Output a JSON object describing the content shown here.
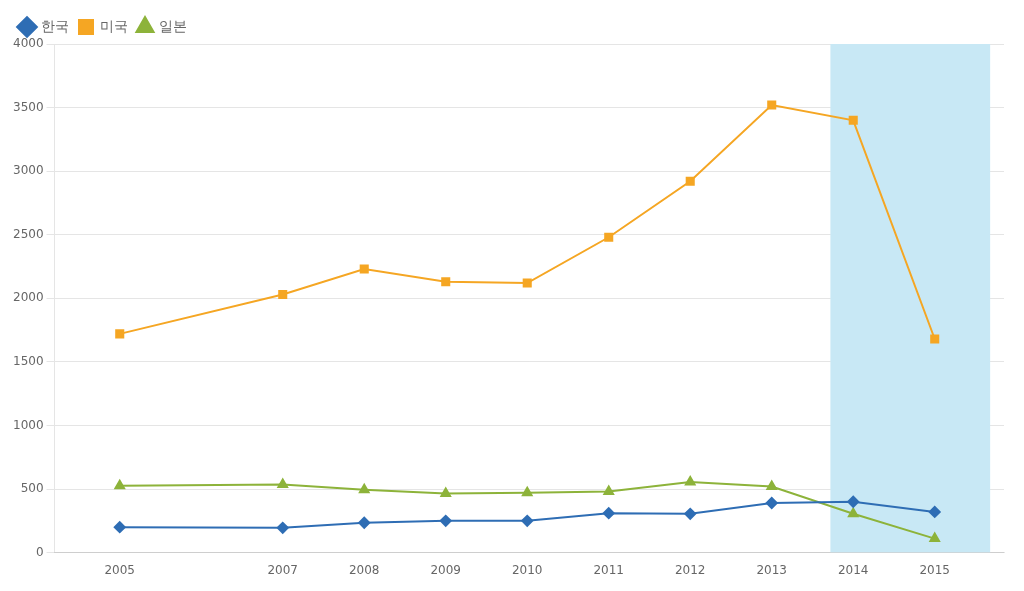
{
  "chart_data": {
    "type": "line",
    "x": [
      2005,
      2007,
      2008,
      2009,
      2010,
      2011,
      2012,
      2013,
      2014,
      2015
    ],
    "series": [
      {
        "name": "한국",
        "color": "#2E6DB4",
        "marker": "diamond",
        "values": [
          200,
          195,
          235,
          250,
          250,
          310,
          305,
          390,
          400,
          320
        ]
      },
      {
        "name": "미국",
        "color": "#F5A623",
        "marker": "square",
        "values": [
          1720,
          2030,
          2230,
          2130,
          2120,
          2480,
          2920,
          3520,
          3400,
          1680
        ]
      },
      {
        "name": "일본",
        "color": "#8DB33A",
        "marker": "triangle",
        "values": [
          525,
          535,
          495,
          465,
          470,
          480,
          555,
          520,
          305,
          110
        ]
      }
    ],
    "spans": [
      {
        "x": [
          2013.72,
          2015.68
        ],
        "color": "#C8E8F5"
      }
    ],
    "xlim": [
      2004.2,
      2015.85
    ],
    "xticks": [
      2005,
      2007,
      2008,
      2009,
      2010,
      2011,
      2012,
      2013,
      2014,
      2015
    ],
    "ylim": [
      0,
      4000
    ],
    "yticks": [
      0,
      500,
      1000,
      1500,
      2000,
      2500,
      3000,
      3500,
      4000
    ],
    "grid": "y",
    "legend": "upper left"
  }
}
